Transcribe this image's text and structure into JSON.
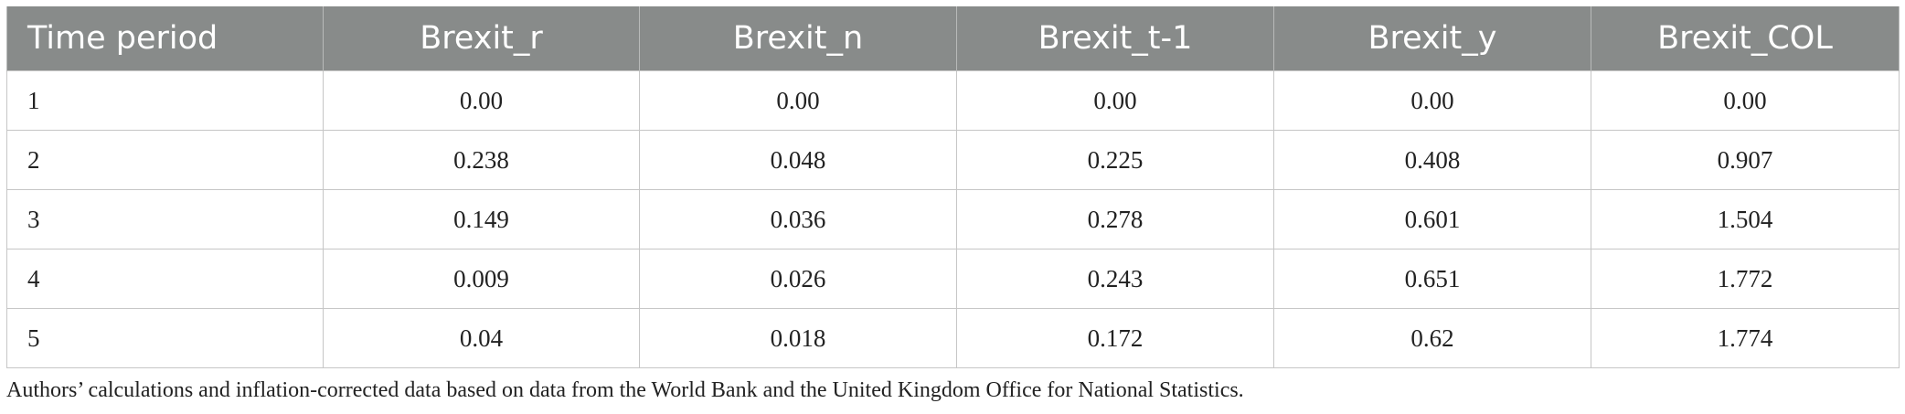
{
  "table": {
    "headers": [
      "Time period",
      "Brexit_r",
      "Brexit_n",
      "Brexit_t-1",
      "Brexit_y",
      "Brexit_COL"
    ],
    "rows": [
      [
        "1",
        "0.00",
        "0.00",
        "0.00",
        "0.00",
        "0.00"
      ],
      [
        "2",
        "0.238",
        "0.048",
        "0.225",
        "0.408",
        "0.907"
      ],
      [
        "3",
        "0.149",
        "0.036",
        "0.278",
        "0.601",
        "1.504"
      ],
      [
        "4",
        "0.009",
        "0.026",
        "0.243",
        "0.651",
        "1.772"
      ],
      [
        "5",
        "0.04",
        "0.018",
        "0.172",
        "0.62",
        "1.774"
      ]
    ]
  },
  "footnote": "Authors’ calculations and inflation-corrected data based on data from the World Bank and the United Kingdom Office for National Statistics.",
  "colors": {
    "header_bg": "#888b8a",
    "header_text": "#ffffff",
    "grid": "#c6c6c6"
  }
}
